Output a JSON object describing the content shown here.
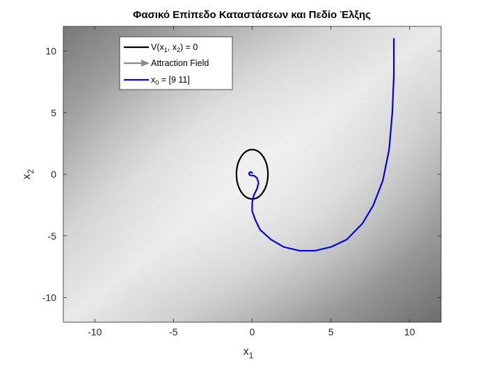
{
  "chart_data": {
    "type": "line",
    "title": "Φασικό Επίπεδο Καταστάσεων και Πεδίο Έλξης",
    "xlabel": {
      "base": "x",
      "sub": "1"
    },
    "ylabel": {
      "base": "x",
      "sub": "2"
    },
    "xlim": [
      -12,
      12
    ],
    "ylim": [
      -12,
      12
    ],
    "xticks": [
      -10,
      -5,
      0,
      5,
      10
    ],
    "yticks": [
      -10,
      -5,
      0,
      5,
      10
    ],
    "xtick_labels": [
      "-10",
      "-5",
      "0",
      "5",
      "10"
    ],
    "ytick_labels": [
      "-10",
      "-5",
      "0",
      "5",
      "10"
    ],
    "grid": false,
    "background": "dense grey vector field (Attraction Field)",
    "legend_position": "top-left",
    "legend": [
      {
        "label_parts": [
          "V(x",
          "1",
          ", x",
          "2",
          ") = 0"
        ],
        "style": "line",
        "color": "#000000"
      },
      {
        "label_parts": [
          "Attraction Field"
        ],
        "style": "arrow",
        "color": "#8c8c8c"
      },
      {
        "label_parts": [
          "x",
          "0",
          " = [9  11]"
        ],
        "style": "line",
        "color": "#0000e6"
      }
    ],
    "series": [
      {
        "name": "V(x1, x2) = 0",
        "color": "#000000",
        "shape": "ellipse",
        "center": [
          0,
          0
        ],
        "radii": [
          1,
          2
        ]
      },
      {
        "name": "x0 = [9  11]",
        "color": "#0000e6",
        "x": [
          9.0,
          9.0,
          8.9,
          8.7,
          8.3,
          7.7,
          7.0,
          6.0,
          5.0,
          4.0,
          3.0,
          2.0,
          1.2,
          0.5,
          0.2,
          0.0,
          0.0,
          0.1,
          0.3,
          0.4,
          0.3,
          0.1,
          -0.1,
          -0.2,
          -0.2,
          -0.1,
          0.0
        ],
        "y": [
          11.0,
          8.0,
          5.0,
          2.0,
          -0.5,
          -2.5,
          -4.0,
          -5.3,
          -5.9,
          -6.2,
          -6.2,
          -5.9,
          -5.3,
          -4.5,
          -3.7,
          -3.0,
          -2.3,
          -1.7,
          -1.2,
          -0.7,
          -0.3,
          -0.1,
          -0.1,
          0.0,
          0.1,
          0.2,
          0.1
        ]
      }
    ]
  }
}
